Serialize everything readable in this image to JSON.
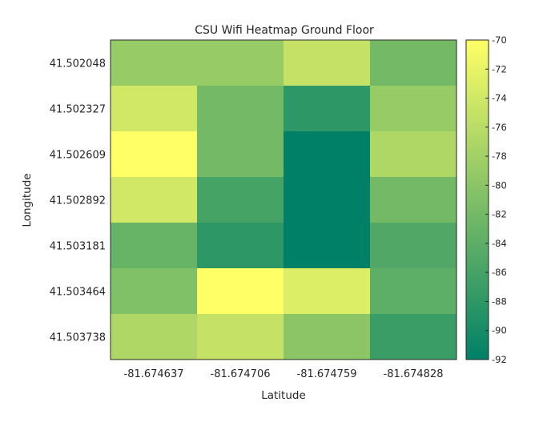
{
  "chart_data": {
    "type": "heatmap",
    "title": "CSU Wifi Heatmap Ground Floor",
    "xlabel": "Latitude",
    "ylabel": "Longitude",
    "x_categories": [
      "-81.674637",
      "-81.674706",
      "-81.674759",
      "-81.674828"
    ],
    "y_categories": [
      "41.502048",
      "41.502327",
      "41.502609",
      "41.502892",
      "41.503181",
      "41.503464",
      "41.503738"
    ],
    "values": [
      [
        -79,
        -79,
        -75,
        -82
      ],
      [
        -74,
        -82,
        -88,
        -79
      ],
      [
        -70,
        -82,
        -92,
        -77
      ],
      [
        -74,
        -86,
        -92,
        -82
      ],
      [
        -83,
        -88,
        -92,
        -85
      ],
      [
        -81,
        -70,
        -73,
        -84
      ],
      [
        -77,
        -75,
        -80,
        -87
      ]
    ],
    "colorbar": {
      "min": -92,
      "max": -70,
      "ticks": [
        "-70",
        "-72",
        "-74",
        "-76",
        "-78",
        "-80",
        "-82",
        "-84",
        "-86",
        "-88",
        "-90",
        "-92"
      ]
    },
    "colormap": {
      "name": "summer",
      "low_color": "#008066",
      "high_color": "#ffff66"
    }
  }
}
